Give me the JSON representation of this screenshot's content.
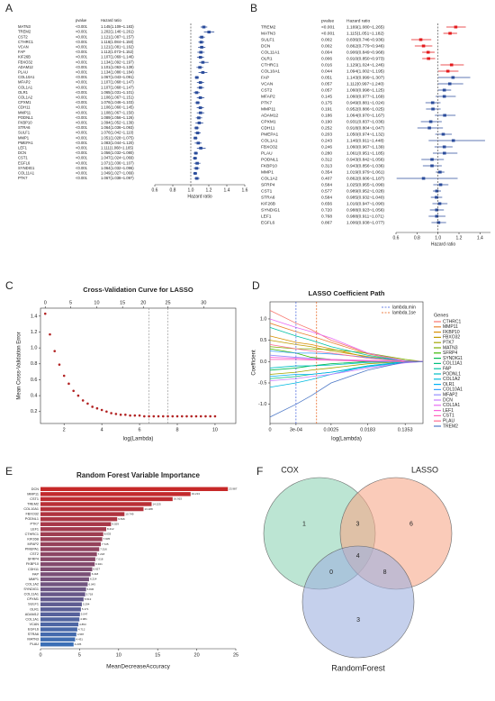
{
  "chart_data": [
    {
      "type": "forest",
      "panel": "A",
      "columns": [
        "pvalue",
        "Hazard ratio"
      ],
      "xlabel": "Hazard ratio",
      "genes": [
        "MATN3",
        "TREM2",
        "CST2",
        "CTHRC1",
        "VCAN",
        "FAP",
        "KIF26B",
        "FBXO32",
        "ADAM12",
        "PLAU",
        "COL10A1",
        "MFAP2",
        "COL1A1",
        "OLR1",
        "COL1A2",
        "CPXM1",
        "CDH11",
        "MMP11",
        "PODNL1",
        "FKBP10",
        "STRA6",
        "SULF1",
        "MMP1",
        "PMEPA1",
        "LEF1",
        "DCN",
        "CST1",
        "EGFL6",
        "SYNDIG1",
        "COL11A1",
        "PTK7"
      ],
      "pvalues": [
        "<0.001",
        "<0.001",
        "<0.001",
        "<0.001",
        "<0.001",
        "<0.001",
        "<0.001",
        "<0.001",
        "<0.001",
        "<0.001",
        "<0.001",
        "<0.001",
        "<0.001",
        "<0.001",
        "<0.001",
        "<0.001",
        "<0.001",
        "<0.001",
        "<0.001",
        "<0.001",
        "<0.001",
        "<0.001",
        "<0.001",
        "<0.001",
        "<0.001",
        "<0.001",
        "<0.001",
        "<0.001",
        "<0.001",
        "<0.001",
        "<0.001"
      ],
      "hr_labels": [
        "1.145(1.109~1.183)",
        "1.202(1.146~1.261)",
        "1.121(1.087~1.157)",
        "1.116(1.084~1.150)",
        "1.121(1.081~1.162)",
        "1.112(1.073~1.152)",
        "1.107(1.069~1.146)",
        "1.134(1.092~1.197)",
        "1.101(1.063~1.139)",
        "1.134(1.086~1.184)",
        "1.067(1.043~1.091)",
        "1.107(1.068~1.147)",
        "1.107(1.068~1.147)",
        "1.065(1.031~1.101)",
        "1.106(1.067~1.151)",
        "1.076(1.046~1.103)",
        "1.106(1.066~1.145)",
        "1.108(1.067~1.150)",
        "1.089(1.056~1.126)",
        "1.094(1.052~1.139)",
        "1.064(1.036~1.093)",
        "1.076(1.042~1.110)",
        "1.051(1.028~1.075)",
        "1.083(1.044~1.120)",
        "1.111(1.068~1.165)",
        "1.056(1.032~1.080)",
        "1.047(1.024~1.069)",
        "1.071(1.036~1.107)",
        "1.064(1.032~1.096)",
        "1.049(1.027~1.069)",
        "1.067(1.038~1.097)"
      ],
      "values": [
        1.145,
        1.202,
        1.121,
        1.116,
        1.121,
        1.112,
        1.107,
        1.134,
        1.101,
        1.134,
        1.067,
        1.107,
        1.107,
        1.065,
        1.106,
        1.076,
        1.106,
        1.108,
        1.089,
        1.094,
        1.064,
        1.076,
        1.051,
        1.083,
        1.111,
        1.056,
        1.047,
        1.071,
        1.064,
        1.049,
        1.067
      ],
      "lower": [
        1.109,
        1.146,
        1.087,
        1.084,
        1.081,
        1.073,
        1.069,
        1.092,
        1.063,
        1.086,
        1.043,
        1.068,
        1.068,
        1.031,
        1.067,
        1.046,
        1.066,
        1.067,
        1.056,
        1.052,
        1.036,
        1.042,
        1.028,
        1.044,
        1.068,
        1.032,
        1.024,
        1.036,
        1.032,
        1.027,
        1.038
      ],
      "upper": [
        1.183,
        1.261,
        1.157,
        1.15,
        1.162,
        1.152,
        1.146,
        1.197,
        1.139,
        1.184,
        1.091,
        1.147,
        1.147,
        1.101,
        1.151,
        1.103,
        1.145,
        1.15,
        1.126,
        1.139,
        1.093,
        1.11,
        1.075,
        1.12,
        1.165,
        1.08,
        1.069,
        1.107,
        1.096,
        1.069,
        1.097
      ],
      "color": "#2b4c9b",
      "ref": 1,
      "xlim": [
        0.6,
        1.6
      ],
      "xticks": [
        0.6,
        0.8,
        {
          "value": 1,
          "label": "1.0"
        },
        1.2,
        1.4,
        1.6
      ]
    },
    {
      "type": "forest",
      "panel": "B",
      "columns": [
        "pvalue",
        "Hazard ratio"
      ],
      "xlabel": "Hazard ratio",
      "genes": [
        "TREM2",
        "MATN3",
        "SULF1",
        "DCN",
        "COL11A1",
        "OLR1",
        "CTHRC1",
        "COL10A1",
        "FAP",
        "VCAN",
        "CST2",
        "MFAP2",
        "PTK7",
        "MMP11",
        "ADAM12",
        "CPXM1",
        "CDH11",
        "PMEPA1",
        "COL1A1",
        "FBXO32",
        "PLAU",
        "PODNL1",
        "FKBP10",
        "MMP1",
        "COL1A2",
        "SFRP4",
        "CST1",
        "STRA6",
        "KIF26B",
        "SYNDIG1",
        "LEF1",
        "EGFL6"
      ],
      "pvalues": [
        "<0.001",
        "<0.001",
        "0.002",
        "0.002",
        "0.004",
        "0.006",
        "0.016",
        "0.044",
        "0.051",
        "0.057",
        "0.057",
        "0.145",
        "0.175",
        "0.191",
        "0.186",
        "0.190",
        "0.252",
        "0.203",
        "0.243",
        "0.246",
        "0.280",
        "0.312",
        "0.313",
        "0.354",
        "0.407",
        "0.584",
        "0.577",
        "0.584",
        "0.656",
        "0.720",
        "0.768",
        "0.867"
      ],
      "hr_labels": [
        "1.169(1.080~1.265)",
        "1.115(1.051~1.182)",
        "0.836(0.746~0.936)",
        "0.862(0.779~0.946)",
        "0.906(0.849~0.968)",
        "0.910(0.850~0.973)",
        "1.129(1.024~1.246)",
        "1.094(1.002~1.195)",
        "1.143(0.999~1.307)",
        "1.112(0.997~1.240)",
        "1.060(0.998~1.125)",
        "1.060(0.977~1.169)",
        "0.949(0.881~1.024)",
        "0.952(0.886~1.025)",
        "1.064(0.970~1.167)",
        "0.931(0.837~1.036)",
        "0.918(0.804~1.047)",
        "1.050(0.974~1.132)",
        "1.146(0.911~1.448)",
        "1.060(0.967~1.139)",
        "1.061(0.951~1.185)",
        "0.943(0.842~1.056)",
        "0.943(0.856~1.036)",
        "1.019(0.979~1.061)",
        "0.862(0.606~1.187)",
        "1.025(0.955~1.099)",
        "0.989(0.952~1.028)",
        "0.985(0.932~1.040)",
        "1.016(0.947~1.090)",
        "0.988(0.923~1.056)",
        "0.988(0.911~1.071)",
        "1.006(0.938~1.077)"
      ],
      "values": [
        1.169,
        1.115,
        0.836,
        0.862,
        0.906,
        0.91,
        1.129,
        1.094,
        1.143,
        1.112,
        1.06,
        1.06,
        0.949,
        0.952,
        1.064,
        0.931,
        0.918,
        1.05,
        1.146,
        1.06,
        1.061,
        0.943,
        0.943,
        1.019,
        0.862,
        1.025,
        0.989,
        0.985,
        1.016,
        0.988,
        0.988,
        1.006
      ],
      "lower": [
        1.08,
        1.051,
        0.746,
        0.779,
        0.849,
        0.85,
        1.024,
        1.002,
        0.999,
        0.997,
        0.998,
        0.977,
        0.881,
        0.886,
        0.97,
        0.837,
        0.804,
        0.974,
        0.911,
        0.967,
        0.951,
        0.842,
        0.856,
        0.979,
        0.606,
        0.955,
        0.952,
        0.932,
        0.947,
        0.923,
        0.911,
        0.938
      ],
      "upper": [
        1.265,
        1.182,
        0.936,
        0.946,
        0.968,
        0.973,
        1.246,
        1.195,
        1.307,
        1.24,
        1.125,
        1.169,
        1.024,
        1.025,
        1.167,
        1.036,
        1.047,
        1.132,
        1.448,
        1.139,
        1.185,
        1.056,
        1.036,
        1.061,
        1.187,
        1.099,
        1.028,
        1.04,
        1.09,
        1.056,
        1.071,
        1.077
      ],
      "color": "#2b4c9b",
      "colors": [
        "#e41a1c",
        "#e41a1c",
        "#e41a1c",
        "#e41a1c",
        "#e41a1c",
        "#e41a1c",
        "#e41a1c",
        "#e41a1c",
        "#2b4c9b",
        "#2b4c9b",
        "#2b4c9b",
        "#2b4c9b",
        "#2b4c9b",
        "#2b4c9b",
        "#2b4c9b",
        "#2b4c9b",
        "#2b4c9b",
        "#2b4c9b",
        "#2b4c9b",
        "#2b4c9b",
        "#2b4c9b",
        "#2b4c9b",
        "#2b4c9b",
        "#2b4c9b",
        "#2b4c9b",
        "#2b4c9b",
        "#2b4c9b",
        "#2b4c9b",
        "#2b4c9b",
        "#2b4c9b",
        "#2b4c9b",
        "#2b4c9b"
      ],
      "ref": 1,
      "xlim": [
        0.6,
        1.5
      ],
      "xticks": [
        0.6,
        0.8,
        {
          "value": 1,
          "label": "1.0"
        },
        1.2,
        1.4
      ]
    },
    {
      "type": "scatter",
      "panel": "C",
      "title": "Cross-Validation Curve for LASSO",
      "xlabel": "log(Lambda)",
      "ylabel": "Mean Cross-Validation Error",
      "color": "#b22222",
      "x": [
        1,
        1.25,
        1.5,
        1.75,
        2,
        2.25,
        2.5,
        2.75,
        3,
        3.25,
        3.5,
        3.75,
        4,
        4.25,
        4.5,
        4.75,
        5,
        5.25,
        5.5,
        5.75,
        6,
        6.25,
        6.5,
        6.75,
        7,
        7.25,
        7.5,
        7.75,
        8,
        8.25,
        8.5,
        8.75,
        9,
        9.25,
        9.5,
        9.75,
        10
      ],
      "values": [
        1.43,
        1.17,
        0.96,
        0.79,
        0.65,
        0.55,
        0.46,
        0.4,
        0.34,
        0.3,
        0.26,
        0.24,
        0.22,
        0.2,
        0.18,
        0.17,
        0.16,
        0.16,
        0.15,
        0.15,
        0.15,
        0.14,
        0.14,
        0.14,
        0.14,
        0.14,
        0.14,
        0.14,
        0.14,
        0.14,
        0.14,
        0.14,
        0.14,
        0.14,
        0.14,
        0.14,
        0.14
      ],
      "xlim": [
        0.75,
        11.1
      ],
      "ylim": [
        0.05,
        1.5
      ],
      "xticks": [
        2,
        4,
        6,
        8,
        10
      ],
      "yticks": [
        0.2,
        0.4,
        0.6,
        0.8,
        {
          "value": 1,
          "label": "1.0"
        },
        1.2,
        1.4
      ],
      "top_ticks": [
        {
          "value": 1,
          "label": "0"
        },
        {
          "value": 2.35,
          "label": "5"
        },
        {
          "value": 3.73,
          "label": "10"
        },
        {
          "value": 5.1,
          "label": "15"
        },
        {
          "value": 6.2,
          "label": "20"
        },
        {
          "value": 7.5,
          "label": "25"
        },
        {
          "value": 9.4,
          "label": "30"
        }
      ],
      "vlines": [
        6.5,
        7.5
      ]
    },
    {
      "type": "line",
      "panel": "D",
      "title": "LASSO Coefficient Path",
      "xlabel": "log(Lambda)",
      "ylabel": "Coefficient",
      "legend_title": "Genes",
      "x": [
        0,
        0.0003,
        0.0008,
        0.0025,
        0.0183,
        0.1353,
        0.35
      ],
      "series": [
        {
          "name": "CTHRC1",
          "color": "#f8766d",
          "values": [
            1.2,
            0.9,
            0.75,
            0.5,
            0.2,
            0.02,
            0
          ]
        },
        {
          "name": "MMP11",
          "color": "#ea8331",
          "values": [
            0.9,
            0.7,
            0.6,
            0.45,
            0.18,
            0.01,
            0
          ]
        },
        {
          "name": "FKBP10",
          "color": "#d89000",
          "values": [
            0.6,
            0.45,
            0.4,
            0.3,
            0.1,
            0,
            0
          ]
        },
        {
          "name": "FBXO32",
          "color": "#c09b00",
          "values": [
            0.5,
            0.4,
            0.35,
            0.25,
            0.12,
            0.02,
            0
          ]
        },
        {
          "name": "PTK7",
          "color": "#a3a500",
          "values": [
            -0.3,
            -0.25,
            -0.2,
            -0.15,
            -0.05,
            0,
            0
          ]
        },
        {
          "name": "MATN3",
          "color": "#7cae00",
          "values": [
            0.35,
            0.3,
            0.3,
            0.28,
            0.2,
            0.05,
            0
          ]
        },
        {
          "name": "SFRP4",
          "color": "#39b600",
          "values": [
            0.3,
            0.2,
            0.1,
            0.05,
            0,
            0,
            0
          ]
        },
        {
          "name": "SYNDIG1",
          "color": "#00bb4e",
          "values": [
            -0.2,
            -0.15,
            -0.1,
            -0.05,
            0,
            0,
            0
          ]
        },
        {
          "name": "COL11A1",
          "color": "#00bf7d",
          "values": [
            -0.4,
            -0.35,
            -0.3,
            -0.25,
            -0.1,
            -0.01,
            0
          ]
        },
        {
          "name": "FAP",
          "color": "#00c1a3",
          "values": [
            0.8,
            0.6,
            0.5,
            0.35,
            0.15,
            0.01,
            0
          ]
        },
        {
          "name": "PODNL1",
          "color": "#00bfc4",
          "values": [
            -0.15,
            -0.1,
            -0.1,
            -0.08,
            -0.02,
            0,
            0
          ]
        },
        {
          "name": "COL1A2",
          "color": "#00bae0",
          "values": [
            -0.6,
            -0.5,
            -0.42,
            -0.3,
            -0.1,
            0,
            0
          ]
        },
        {
          "name": "OLR1",
          "color": "#00b0f6",
          "values": [
            -0.35,
            -0.3,
            -0.3,
            -0.25,
            -0.12,
            -0.02,
            0
          ]
        },
        {
          "name": "COL10A1",
          "color": "#35a2ff",
          "values": [
            0.25,
            0.2,
            0.2,
            0.18,
            0.1,
            0.02,
            0
          ]
        },
        {
          "name": "MFAP2",
          "color": "#9590ff",
          "values": [
            0.15,
            0.1,
            0.08,
            0.05,
            0.02,
            0,
            0
          ]
        },
        {
          "name": "DCN",
          "color": "#c77cff",
          "values": [
            -0.45,
            -0.4,
            -0.35,
            -0.3,
            -0.15,
            -0.03,
            0
          ]
        },
        {
          "name": "COL1A1",
          "color": "#e76bf3",
          "values": [
            1.0,
            0.8,
            0.7,
            0.55,
            0.2,
            0.01,
            0
          ]
        },
        {
          "name": "LEF1",
          "color": "#fa62db",
          "values": [
            0.1,
            0.08,
            0.06,
            0.05,
            0.03,
            0,
            0
          ]
        },
        {
          "name": "CST1",
          "color": "#ff62bc",
          "values": [
            0.05,
            0.05,
            0.04,
            0.03,
            0.01,
            0,
            0
          ]
        },
        {
          "name": "PLAU",
          "color": "#ff6c91",
          "values": [
            0.4,
            0.3,
            0.25,
            0.2,
            0.08,
            0,
            0
          ]
        },
        {
          "name": "TREM2",
          "color": "#4e79c7",
          "values": [
            -1.3,
            -1.0,
            -0.8,
            -0.5,
            -0.2,
            -0.01,
            0
          ]
        }
      ],
      "xlim": [
        0,
        0.35
      ],
      "ylim": [
        -1.45,
        1.4
      ],
      "xticks": [
        0,
        {
          "value": 0.0003,
          "label": "3e-04"
        },
        0.0025,
        0.0183,
        0.1353
      ],
      "yticks": [
        {
          "value": -1,
          "label": "-1.0"
        },
        -0.5,
        {
          "value": 0,
          "label": "0.0"
        },
        0.5,
        {
          "value": 1,
          "label": "1.0"
        }
      ],
      "vlines": [
        {
          "name": "lambda.min",
          "value": 0.0003,
          "color": "#3b5bdb"
        },
        {
          "name": "lambda.1se",
          "value": 0.0011,
          "color": "#e8590c"
        }
      ]
    },
    {
      "type": "hbar",
      "panel": "E",
      "title": "Random Forest Variable Importance",
      "xlabel": "MeanDecreaseAccuracy",
      "categories": [
        "DCN",
        "MMP11",
        "CST1",
        "TREM2",
        "COL10A1",
        "FBXO32",
        "PODNL1",
        "PTK7",
        "LEF1",
        "CTHRC1",
        "KIF26B",
        "MFAP2",
        "PMEPA1",
        "CST2",
        "SFRP4",
        "FKBP10",
        "CDH11",
        "FAP",
        "MMP1",
        "COL1A2",
        "SYNDIG1",
        "COL11A1",
        "CPXM1",
        "SULF1",
        "OLR1",
        "ADAM12",
        "COL1A1",
        "VCAN",
        "EGFL6",
        "STRA6",
        "MATN3",
        "PLAU"
      ],
      "values": [
        23.987,
        19.213,
        16.915,
        14.225,
        13.188,
        10.749,
        9.816,
        9.029,
        8.412,
        8.033,
        7.905,
        7.725,
        7.516,
        7.218,
        7.018,
        6.941,
        6.627,
        6.418,
        6.214,
        6.043,
        5.836,
        5.718,
        5.513,
        5.294,
        5.171,
        5.047,
        4.981,
        4.853,
        4.712,
        4.587,
        4.431,
        4.235
      ],
      "color_range": [
        "#c62828",
        "#3b6fb6"
      ],
      "xlim": [
        0,
        25
      ],
      "xticks": [
        0,
        5,
        10,
        15,
        20,
        25
      ]
    },
    {
      "type": "venn",
      "panel": "F",
      "sets": [
        "COX",
        "LASSO",
        "RandomForest"
      ],
      "colors": [
        "#8fd3b6",
        "#f6a98a",
        "#9fb1e0"
      ],
      "regions": [
        {
          "in": [
            0
          ],
          "value": 1
        },
        {
          "in": [
            1
          ],
          "value": 6
        },
        {
          "in": [
            2
          ],
          "value": 3
        },
        {
          "in": [
            0,
            1
          ],
          "value": 3
        },
        {
          "in": [
            0,
            2
          ],
          "value": 0
        },
        {
          "in": [
            1,
            2
          ],
          "value": 8
        },
        {
          "in": [
            0,
            1,
            2
          ],
          "value": 4
        }
      ]
    }
  ]
}
